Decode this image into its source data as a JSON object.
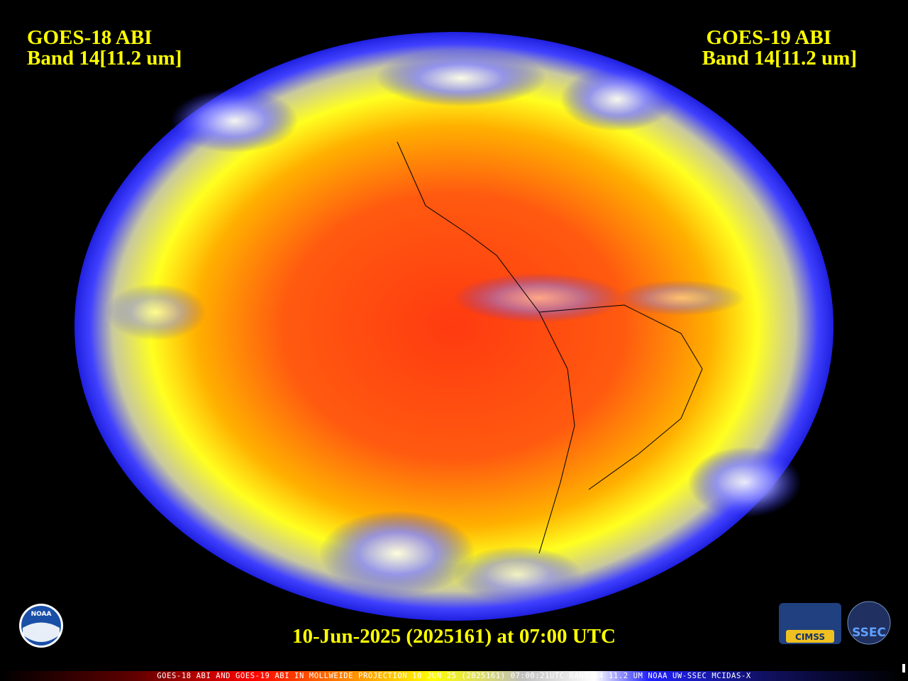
{
  "header": {
    "left": {
      "line1": "GOES-18 ABI",
      "line2": "Band 14[11.2 um]"
    },
    "right": {
      "line1": "GOES-19 ABI",
      "line2": "Band 14[11.2 um]"
    }
  },
  "timestamp": "10-Jun-2025 (2025161) at 07:00 UTC",
  "logos": {
    "noaa": "NOAA",
    "cimss": "CIMSS",
    "ssec": "SSEC"
  },
  "footer": "GOES-18 ABI AND GOES-19 ABI IN MOLLWEIDE PROJECTION 10 JUN 25 (2025161) 07:00:21UTC BAND-14 11.2 UM NOAA UW-SSEC MCIDAS-X"
}
